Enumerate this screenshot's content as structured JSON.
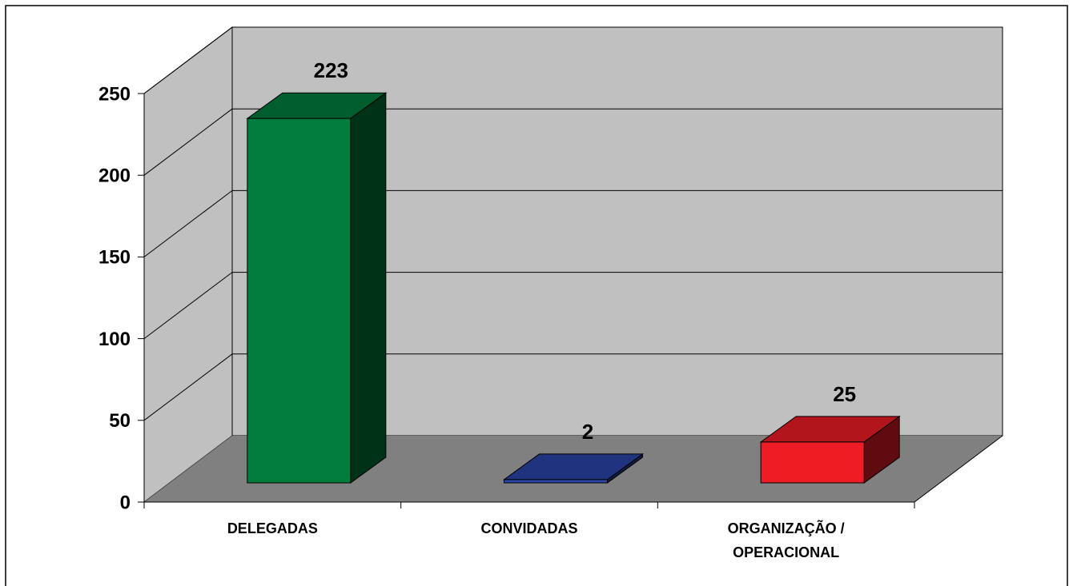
{
  "chart_data": {
    "type": "bar3d",
    "categories": [
      "DELEGADAS",
      "CONVIDADAS",
      "ORGANIZAÇÃO / OPERACIONAL"
    ],
    "values": [
      223,
      2,
      25
    ],
    "colors": [
      "#007c3c",
      "#2a44a8",
      "#ee1c25"
    ],
    "ylim": [
      0,
      250
    ],
    "yticks": [
      0,
      50,
      100,
      150,
      200,
      250
    ],
    "grid": true
  }
}
